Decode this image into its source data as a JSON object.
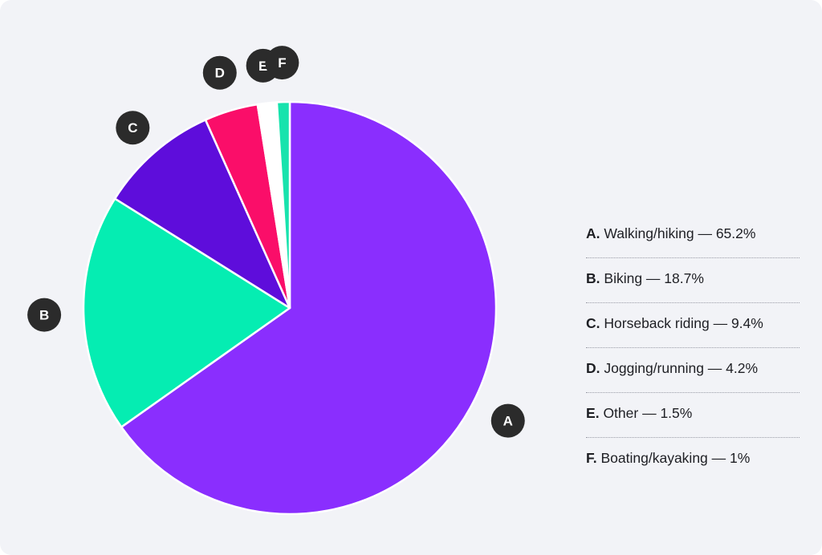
{
  "chart_data": {
    "type": "pie",
    "slices": [
      {
        "marker": "A",
        "label": "Walking/hiking",
        "value": 65.2,
        "value_label": "65.2%",
        "color": "#8a2efe"
      },
      {
        "marker": "B",
        "label": "Biking",
        "value": 18.7,
        "value_label": "18.7%",
        "color": "#05edb2"
      },
      {
        "marker": "C",
        "label": "Horseback riding",
        "value": 9.4,
        "value_label": "9.4%",
        "color": "#5e0ddb"
      },
      {
        "marker": "D",
        "label": "Jogging/running",
        "value": 4.2,
        "value_label": "4.2%",
        "color": "#fa0e69"
      },
      {
        "marker": "E",
        "label": "Other",
        "value": 1.5,
        "value_label": "1.5%",
        "color": "#ffffff"
      },
      {
        "marker": "F",
        "label": "Boating/kayaking",
        "value": 1,
        "value_label": "1%",
        "color": "#18e3ad"
      }
    ],
    "legend_placement": "right",
    "marker_color": "#2b2b2b",
    "background_color": "#f2f3f7"
  }
}
